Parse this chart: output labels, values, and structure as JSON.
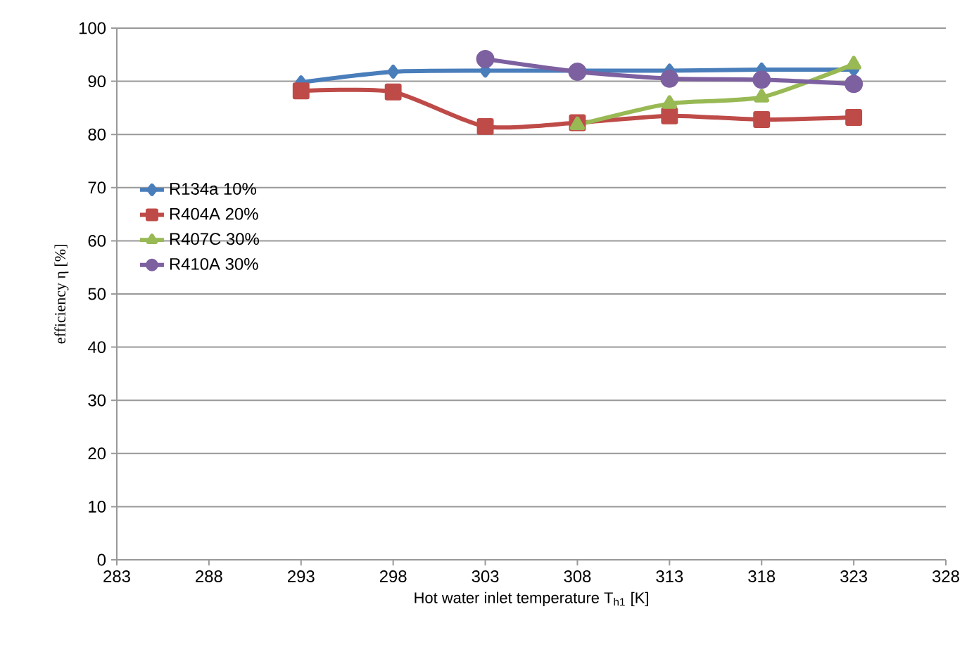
{
  "chart_data": {
    "type": "line",
    "xlabel": "Hot water inlet temperature T$_{h1}$ [K]",
    "ylabel": "efficiency η [%]",
    "xlim": [
      283,
      328
    ],
    "xticks": [
      283,
      288,
      293,
      298,
      303,
      308,
      313,
      318,
      323,
      328
    ],
    "ylim": [
      0,
      100
    ],
    "yticks": [
      0,
      10,
      20,
      30,
      40,
      50,
      60,
      70,
      80,
      90,
      100
    ],
    "grid": "y",
    "legend": "left",
    "line_style": "solid",
    "series": [
      {
        "name": "R134a 10%",
        "color": "#4a7ebb",
        "marker": "diamond",
        "x": [
          293,
          298,
          303,
          308,
          313,
          318,
          323
        ],
        "values": [
          89.8,
          91.8,
          92,
          92,
          92,
          92.2,
          92.2
        ]
      },
      {
        "name": "R404A 20%",
        "color": "#be4b48",
        "marker": "square",
        "x": [
          293,
          298,
          303,
          308,
          313,
          318,
          323
        ],
        "values": [
          88.2,
          88,
          81.5,
          82.2,
          83.5,
          82.8,
          83.2
        ]
      },
      {
        "name": "R407C 30%",
        "color": "#98b954",
        "marker": "triangle",
        "x": [
          308,
          313,
          318,
          323
        ],
        "values": [
          81.8,
          85.8,
          87,
          93.2
        ]
      },
      {
        "name": "R410A 30%",
        "color": "#7d60a0",
        "marker": "circle",
        "x": [
          303,
          308,
          313,
          318,
          323
        ],
        "values": [
          94.2,
          91.8,
          90.5,
          90.3,
          89.5
        ]
      }
    ]
  }
}
